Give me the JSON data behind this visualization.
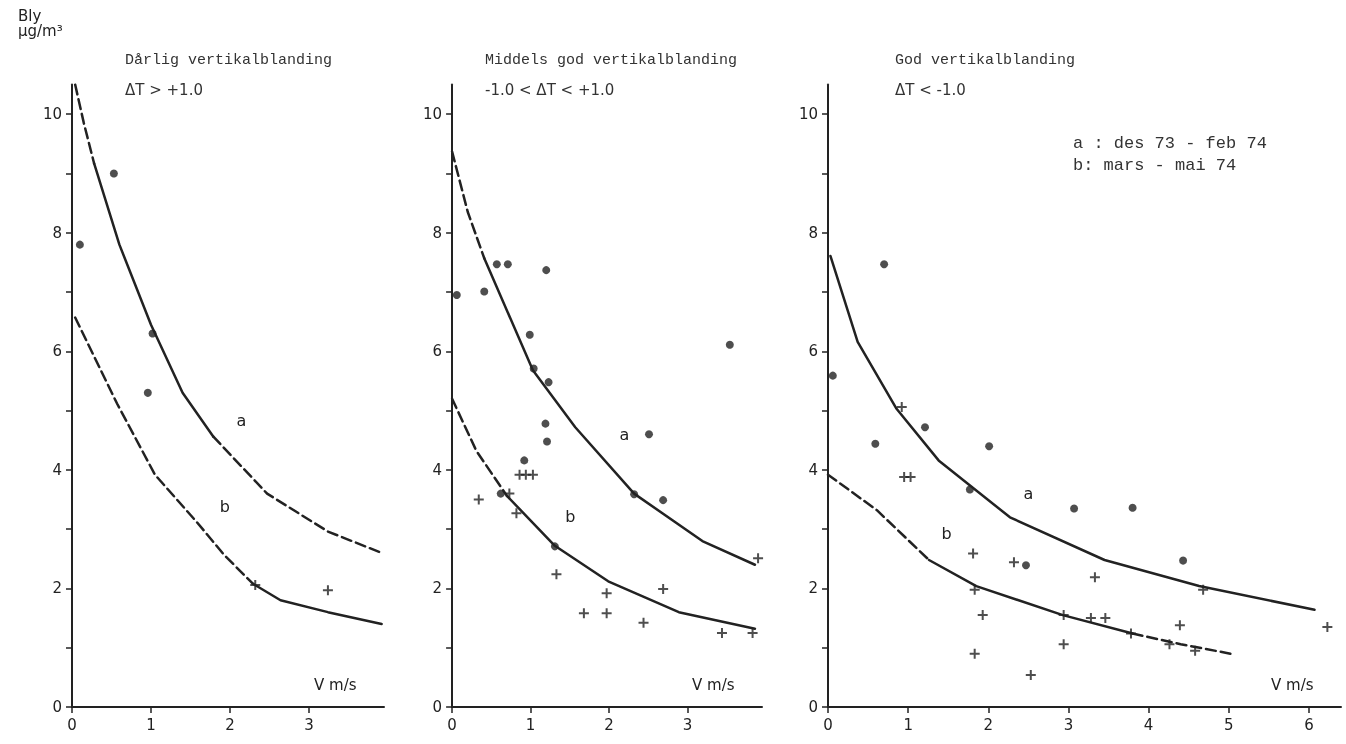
{
  "chart_data": [
    {
      "type": "scatter",
      "title": "Dårlig vertikalblanding",
      "subtitle": "ΔT > +1.0",
      "xlabel": "V m/s",
      "ylabel": "Bly\nμg/m³",
      "xlim": [
        0,
        3.95
      ],
      "xticks": [
        0,
        1,
        2,
        3
      ],
      "ylim": [
        0,
        10.5
      ],
      "yticks": [
        0,
        {
          "value": 1,
          "label": null
        },
        2,
        {
          "value": 3,
          "label": null
        },
        4,
        {
          "value": 5,
          "label": null
        },
        6,
        {
          "value": 7,
          "label": null
        },
        8,
        {
          "value": 9,
          "label": null
        },
        10
      ],
      "annotations": [
        {
          "text": "a",
          "x": 1.79,
          "y": 4.56
        },
        {
          "text": "b",
          "x": 1.58,
          "y": 3.12
        }
      ],
      "series": [
        {
          "type": "scatter",
          "marker": "circle",
          "color": "#222222",
          "x": [
            0.1,
            0.53,
            1.02,
            0.96
          ],
          "values": [
            7.8,
            9.0,
            6.3,
            5.3
          ]
        },
        {
          "type": "scatter",
          "marker": "cross",
          "color": "#222222",
          "x": [
            2.32,
            3.24
          ],
          "values": [
            2.06,
            1.97
          ]
        },
        {
          "type": "line",
          "line_style": "dashed",
          "color": "#222222",
          "x": [
            0.04,
            0.15,
            0.28
          ],
          "values": [
            10.5,
            9.85,
            9.17
          ]
        },
        {
          "type": "line",
          "line_style": "solid",
          "color": "#222222",
          "x": [
            0.28,
            0.6,
            1.0,
            1.4,
            1.79
          ],
          "values": [
            9.17,
            7.8,
            6.45,
            5.3,
            4.56
          ]
        },
        {
          "type": "line",
          "line_style": "dashed",
          "color": "#222222",
          "x": [
            1.79,
            2.47,
            3.24,
            3.92
          ],
          "values": [
            4.56,
            3.6,
            2.96,
            2.6
          ]
        },
        {
          "type": "line",
          "line_style": "dashed",
          "color": "#222222",
          "x": [
            0.04,
            0.57,
            1.05,
            1.58,
            1.93,
            2.29
          ],
          "values": [
            6.57,
            5.12,
            3.92,
            3.12,
            2.56,
            2.08
          ]
        },
        {
          "type": "line",
          "line_style": "solid",
          "color": "#222222",
          "x": [
            2.29,
            2.64,
            3.24,
            3.92
          ],
          "values": [
            2.08,
            1.8,
            1.6,
            1.4
          ]
        }
      ]
    },
    {
      "type": "scatter",
      "title": "Middels god vertikalblanding",
      "subtitle": "-1.0 < ΔT < +1.0",
      "xlabel": "V m/s",
      "xlim": [
        0,
        3.95
      ],
      "xticks": [
        0,
        1,
        2,
        3
      ],
      "ylim": [
        0,
        10.5
      ],
      "yticks": [
        0,
        {
          "value": 1,
          "label": null
        },
        2,
        {
          "value": 3,
          "label": null
        },
        4,
        {
          "value": 5,
          "label": null
        },
        6,
        {
          "value": 7,
          "label": null
        },
        8,
        {
          "value": 9,
          "label": null
        },
        10
      ],
      "annotations": [
        {
          "text": "a",
          "x": 1.84,
          "y": 4.32
        },
        {
          "text": "b",
          "x": 1.15,
          "y": 2.94
        }
      ],
      "series": [
        {
          "type": "scatter",
          "marker": "circle",
          "color": "#222222",
          "x": [
            0.06,
            0.41,
            0.57,
            0.71,
            1.2,
            0.99,
            1.04,
            1.23,
            1.19,
            1.21,
            0.92,
            0.62,
            1.31,
            2.32,
            2.51,
            2.69,
            3.54
          ],
          "values": [
            6.95,
            7.01,
            7.47,
            7.47,
            7.37,
            6.28,
            5.71,
            5.48,
            4.78,
            4.48,
            4.16,
            3.6,
            2.71,
            3.59,
            4.6,
            3.49,
            6.11
          ]
        },
        {
          "type": "scatter",
          "marker": "cross",
          "color": "#222222",
          "x": [
            0.34,
            0.86,
            0.94,
            1.03,
            0.73,
            0.82,
            1.33,
            1.97,
            1.68,
            1.97,
            2.69,
            2.44,
            3.44,
            3.83,
            3.9
          ],
          "values": [
            3.5,
            3.92,
            3.92,
            3.92,
            3.6,
            3.27,
            2.24,
            1.92,
            1.58,
            1.58,
            1.99,
            1.42,
            1.25,
            1.25,
            2.51
          ]
        },
        {
          "type": "line",
          "line_style": "dashed",
          "color": "#222222",
          "x": [
            0,
            0.2,
            0.41
          ],
          "values": [
            9.37,
            8.35,
            7.57
          ]
        },
        {
          "type": "line",
          "line_style": "solid",
          "color": "#222222",
          "x": [
            0.41,
            1.03,
            1.57,
            2.32,
            3.19,
            3.86
          ],
          "values": [
            7.57,
            5.68,
            4.72,
            3.6,
            2.8,
            2.4
          ]
        },
        {
          "type": "line",
          "line_style": "dashed",
          "color": "#222222",
          "x": [
            0,
            0.31,
            0.7
          ],
          "values": [
            5.2,
            4.32,
            3.56
          ]
        },
        {
          "type": "line",
          "line_style": "solid",
          "color": "#222222",
          "x": [
            0.7,
            1.31,
            1.99,
            2.89,
            3.86
          ],
          "values": [
            3.56,
            2.72,
            2.12,
            1.6,
            1.32
          ]
        }
      ]
    },
    {
      "type": "scatter",
      "title": "God vertikalblanding",
      "subtitle": "ΔT < -1.0",
      "xlabel": "V m/s",
      "xlim": [
        0,
        6.4
      ],
      "xticks": [
        0,
        1,
        2,
        3,
        4,
        5,
        6
      ],
      "ylim": [
        0,
        10.5
      ],
      "yticks": [
        0,
        {
          "value": 1,
          "label": null
        },
        2,
        {
          "value": 3,
          "label": null
        },
        4,
        {
          "value": 5,
          "label": null
        },
        6,
        {
          "value": 7,
          "label": null
        },
        8,
        {
          "value": 9,
          "label": null
        },
        10
      ],
      "annotations": [
        {
          "text": "a",
          "x": 2.15,
          "y": 3.33
        },
        {
          "text": "b",
          "x": 1.13,
          "y": 2.65
        },
        "a : des 73 - feb 74",
        "b: mars - mai 74"
      ],
      "series": [
        {
          "type": "scatter",
          "marker": "circle",
          "color": "#222222",
          "x": [
            0.06,
            0.59,
            0.7,
            1.21,
            2.01,
            1.77,
            2.47,
            3.07,
            3.8,
            4.43
          ],
          "values": [
            5.59,
            4.44,
            7.47,
            4.72,
            4.4,
            3.67,
            2.39,
            3.35,
            3.36,
            2.47
          ]
        },
        {
          "type": "scatter",
          "marker": "cross",
          "color": "#222222",
          "x": [
            0.92,
            0.95,
            1.03,
            1.81,
            1.83,
            1.93,
            1.83,
            2.32,
            2.53,
            2.94,
            2.94,
            3.33,
            3.28,
            3.46,
            3.78,
            4.26,
            4.39,
            4.58,
            4.68,
            6.23
          ],
          "values": [
            5.06,
            3.88,
            3.88,
            2.59,
            1.98,
            1.55,
            0.9,
            2.44,
            0.54,
            1.55,
            1.06,
            2.19,
            1.5,
            1.5,
            1.24,
            1.06,
            1.38,
            0.95,
            1.98,
            1.35
          ]
        },
        {
          "type": "line",
          "line_style": "solid",
          "color": "#222222",
          "x": [
            0.03,
            0.37,
            0.85,
            1.38,
            2.27,
            3.45,
            4.63,
            6.07
          ],
          "values": [
            7.61,
            6.16,
            5.04,
            4.16,
            3.2,
            2.48,
            2.04,
            1.64
          ]
        },
        {
          "type": "line",
          "line_style": "dashed",
          "color": "#222222",
          "x": [
            0,
            0.61,
            1.26
          ],
          "values": [
            3.92,
            3.32,
            2.48
          ]
        },
        {
          "type": "line",
          "line_style": "solid",
          "color": "#222222",
          "x": [
            1.26,
            1.85,
            2.93,
            3.8
          ],
          "values": [
            2.48,
            2.04,
            1.55,
            1.24
          ]
        },
        {
          "type": "line",
          "line_style": "dashed",
          "color": "#222222",
          "x": [
            3.8,
            4.4,
            5.02
          ],
          "values": [
            1.24,
            1.06,
            0.9
          ]
        }
      ]
    }
  ]
}
